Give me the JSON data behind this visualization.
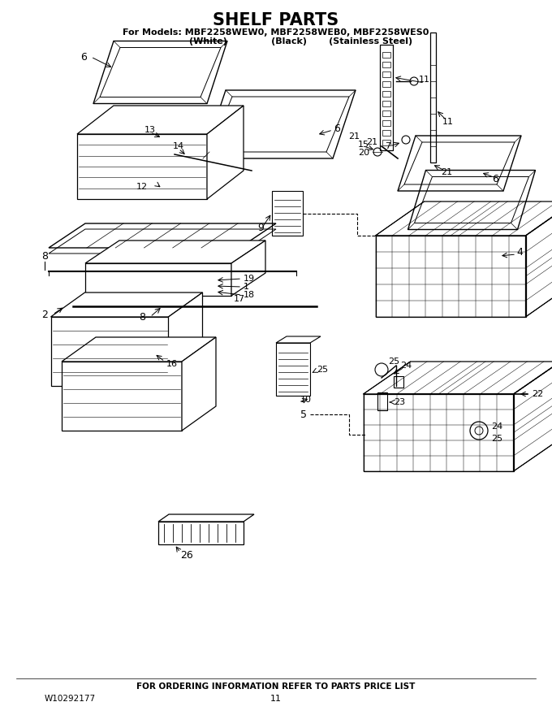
{
  "title": "SHELF PARTS",
  "subtitle_line1": "For Models: MBF2258WEW0, MBF2258WEB0, MBF2258WES0",
  "subtitle_line2": "                (White)              (Black)       (Stainless Steel)",
  "footer_text": "FOR ORDERING INFORMATION REFER TO PARTS PRICE LIST",
  "part_number": "W10292177",
  "page_number": "11",
  "bg_color": "#ffffff",
  "line_color": "#000000"
}
